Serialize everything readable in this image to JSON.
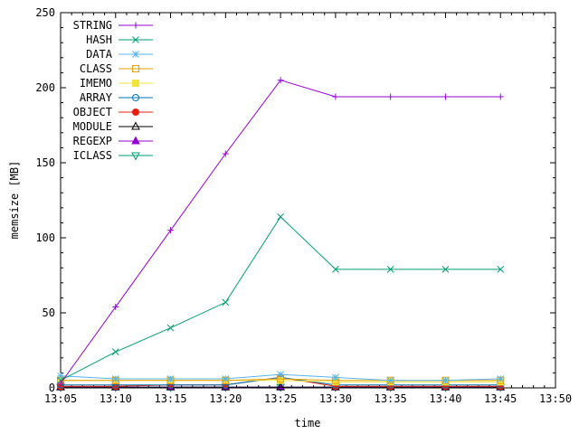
{
  "chart_data": {
    "type": "line",
    "xlabel": "time",
    "ylabel": "memsize [MB]",
    "ylim": [
      0,
      250
    ],
    "yticks": [
      0,
      50,
      100,
      150,
      200,
      250
    ],
    "xlim": [
      "13:05",
      "13:50"
    ],
    "xtick_labels": [
      "13:05",
      "13:10",
      "13:15",
      "13:20",
      "13:25",
      "13:30",
      "13:35",
      "13:40",
      "13:45",
      "13:50"
    ],
    "x": [
      "13:05",
      "13:10",
      "13:15",
      "13:20",
      "13:25",
      "13:30",
      "13:35",
      "13:40",
      "13:45"
    ],
    "legend_position": "top-left",
    "grid": false,
    "series": [
      {
        "name": "STRING",
        "color": "#9400d3",
        "marker": "plus",
        "values": [
          3,
          54,
          105,
          156,
          205,
          194,
          194,
          194,
          194
        ]
      },
      {
        "name": "HASH",
        "color": "#009e73",
        "marker": "cross",
        "values": [
          5,
          24,
          40,
          57,
          114,
          79,
          79,
          79,
          79
        ]
      },
      {
        "name": "DATA",
        "color": "#56b4e9",
        "marker": "star",
        "values": [
          8,
          6,
          6,
          6,
          9,
          7,
          5,
          5,
          6
        ]
      },
      {
        "name": "CLASS",
        "color": "#e69f00",
        "marker": "square-open",
        "values": [
          5,
          5,
          5,
          5,
          6,
          5,
          5,
          5,
          5
        ]
      },
      {
        "name": "IMEMO",
        "color": "#f0e442",
        "marker": "square-filled",
        "values": [
          5,
          5,
          5,
          5,
          5,
          4,
          4,
          4,
          4
        ]
      },
      {
        "name": "ARRAY",
        "color": "#0072b2",
        "marker": "circle-open",
        "values": [
          2,
          2,
          2,
          2,
          7,
          2,
          2,
          2,
          2
        ]
      },
      {
        "name": "OBJECT",
        "color": "#e51e10",
        "marker": "circle-filled",
        "values": [
          1,
          1,
          2,
          2,
          7,
          1,
          1,
          1,
          1
        ]
      },
      {
        "name": "MODULE",
        "color": "#000000",
        "marker": "triangle-open",
        "values": [
          0.5,
          0.5,
          0.5,
          0.5,
          0.5,
          0.5,
          0.5,
          0.5,
          0.5
        ]
      },
      {
        "name": "REGEXP",
        "color": "#9400d3",
        "marker": "triangle-filled",
        "values": [
          0.5,
          0.5,
          0.5,
          0.5,
          0.5,
          0.5,
          0.5,
          0.5,
          0.5
        ]
      },
      {
        "name": "ICLASS",
        "color": "#009e73",
        "marker": "triangle-down-open",
        "values": [
          0.5,
          0.5,
          0.5,
          0.5,
          0.5,
          0.5,
          0.5,
          0.5,
          0.5
        ]
      }
    ]
  }
}
